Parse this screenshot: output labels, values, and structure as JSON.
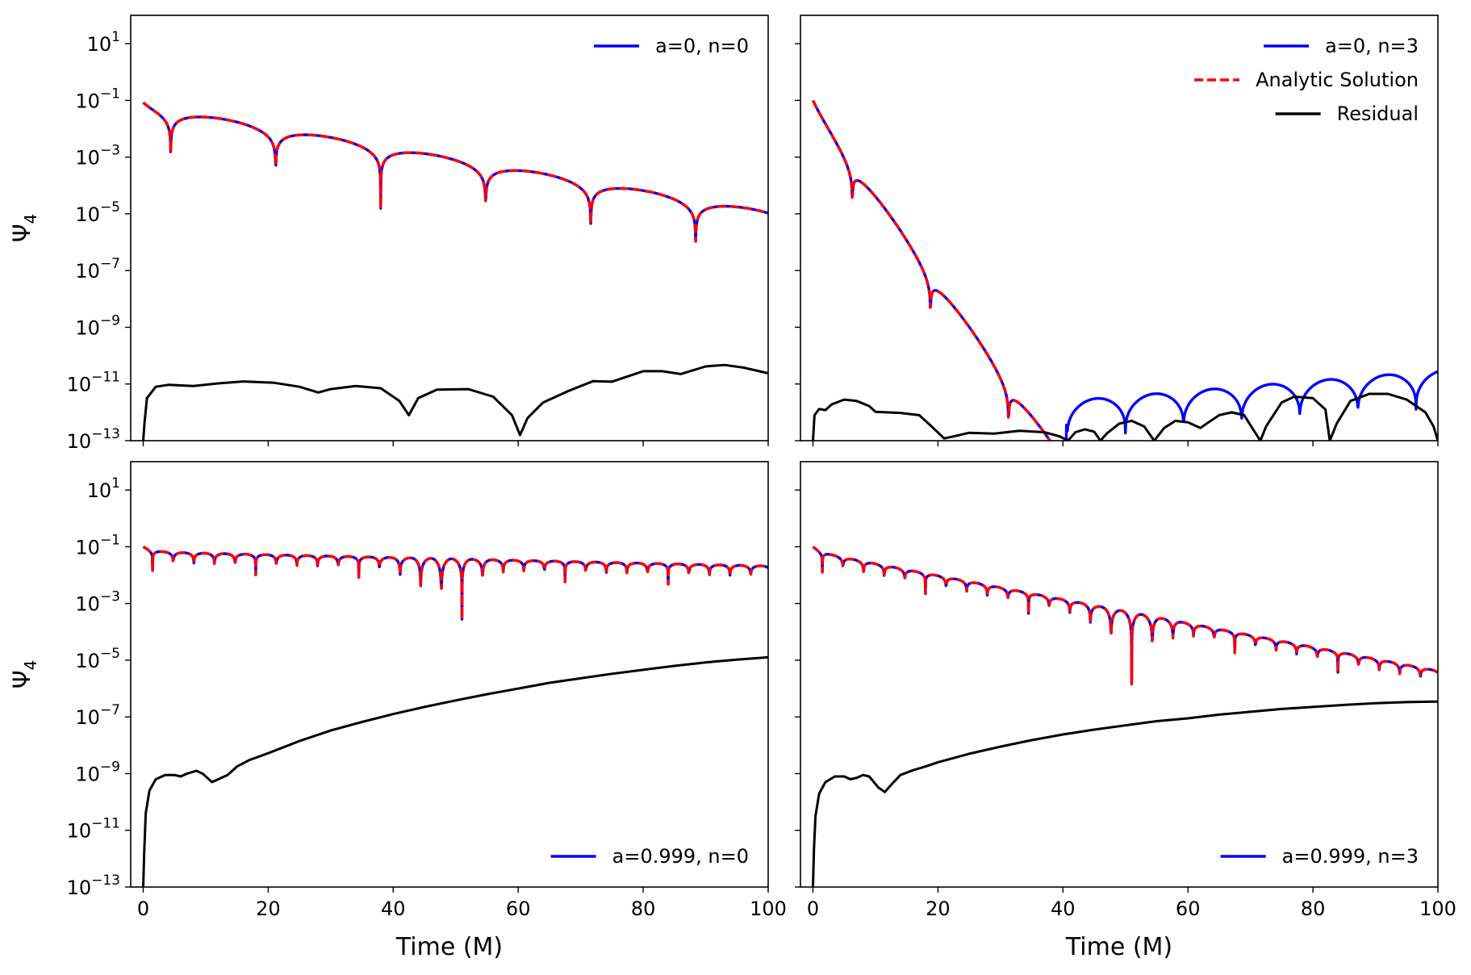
{
  "chart_data": [
    {
      "type": "line",
      "panel": "top-left",
      "yscale": "log",
      "ylabel": "Ψ",
      "ylabel_sub": "4",
      "xlabel": "",
      "xlim": [
        -2,
        100
      ],
      "ylim_exp": [
        -13,
        2
      ],
      "yticks": [
        {
          "base": "10",
          "exp": "1"
        },
        {
          "base": "10",
          "exp": "−1"
        },
        {
          "base": "10",
          "exp": "−3"
        },
        {
          "base": "10",
          "exp": "−5"
        },
        {
          "base": "10",
          "exp": "−7"
        },
        {
          "base": "10",
          "exp": "−9"
        },
        {
          "base": "10",
          "exp": "−11"
        },
        {
          "base": "10",
          "exp": "−13"
        }
      ],
      "xticks": [],
      "legend_loc": "upper right",
      "legend": [
        {
          "label": "a=0, n=0",
          "color": "#0000ff",
          "style": "solid"
        }
      ],
      "series": [
        {
          "name": "Numerical",
          "color": "#0000ff",
          "style": "solid",
          "generator": {
            "kind": "qnm",
            "slope": -0.0375,
            "period": 16.8,
            "phase": 4.4,
            "sharp": 9
          }
        },
        {
          "name": "Analytic Solution",
          "color": "#ff0000",
          "style": "dashed",
          "generator": {
            "kind": "qnm",
            "slope": -0.0375,
            "period": 16.8,
            "phase": 4.4,
            "sharp": 9
          }
        },
        {
          "name": "Residual",
          "color": "#000000",
          "style": "solid",
          "points": [
            [
              0,
              -13
            ],
            [
              0.2,
              -12.4
            ],
            [
              0.6,
              -11.5
            ],
            [
              2,
              -11.1
            ],
            [
              4,
              -11.03
            ],
            [
              8,
              -11.07
            ],
            [
              12,
              -10.98
            ],
            [
              16,
              -10.91
            ],
            [
              21,
              -10.96
            ],
            [
              25,
              -11.1
            ],
            [
              28,
              -11.3
            ],
            [
              30,
              -11.18
            ],
            [
              34,
              -11.07
            ],
            [
              38,
              -11.15
            ],
            [
              41,
              -11.6
            ],
            [
              42.5,
              -12.1
            ],
            [
              44,
              -11.5
            ],
            [
              47,
              -11.2
            ],
            [
              52,
              -11.18
            ],
            [
              56,
              -11.45
            ],
            [
              59,
              -12.1
            ],
            [
              60.3,
              -12.8
            ],
            [
              61.5,
              -12.2
            ],
            [
              64,
              -11.65
            ],
            [
              68,
              -11.25
            ],
            [
              72,
              -10.9
            ],
            [
              75,
              -10.92
            ],
            [
              80,
              -10.55
            ],
            [
              83,
              -10.55
            ],
            [
              86,
              -10.65
            ],
            [
              90,
              -10.38
            ],
            [
              93,
              -10.33
            ],
            [
              96,
              -10.42
            ],
            [
              100,
              -10.62
            ]
          ]
        }
      ]
    },
    {
      "type": "line",
      "panel": "top-right",
      "yscale": "log",
      "ylabel": "",
      "ylabel_sub": "",
      "xlabel": "",
      "xlim": [
        -2,
        100
      ],
      "ylim_exp": [
        -13,
        2
      ],
      "yticks": [],
      "xticks": [],
      "legend_loc": "upper right",
      "legend": [
        {
          "label": "a=0, n=3",
          "color": "#0000ff",
          "style": "solid"
        },
        {
          "label": "Analytic Solution",
          "color": "#ff0000",
          "style": "dashed"
        },
        {
          "label": "Residual",
          "color": "#000000",
          "style": "solid"
        }
      ],
      "series": [
        {
          "name": "Numerical",
          "color": "#0000ff",
          "style": "solid",
          "generator": {
            "kind": "qnm",
            "slope": -0.31,
            "period": 12.5,
            "phase": 6.3,
            "sharp": 9,
            "floor": -12,
            "floor_x": 40.5,
            "floor_period": 9.3,
            "floor_phase": 3.5,
            "floor_mode": "blue"
          }
        },
        {
          "name": "Analytic Solution",
          "color": "#ff0000",
          "style": "dashed",
          "generator": {
            "kind": "qnm",
            "slope": -0.31,
            "period": 12.5,
            "phase": 6.3,
            "sharp": 9,
            "cut_x": 40.5
          }
        },
        {
          "name": "Residual",
          "color": "#000000",
          "style": "solid",
          "points": [
            [
              0,
              -13
            ],
            [
              0.25,
              -12.1
            ],
            [
              1,
              -11.88
            ],
            [
              2,
              -11.92
            ],
            [
              3,
              -11.72
            ],
            [
              5,
              -11.55
            ],
            [
              7,
              -11.6
            ],
            [
              9,
              -11.78
            ],
            [
              10,
              -11.98
            ],
            [
              14,
              -12.02
            ],
            [
              17,
              -12.1
            ],
            [
              19,
              -12.5
            ],
            [
              21,
              -12.92
            ],
            [
              22.5,
              -12.85
            ],
            [
              25,
              -12.72
            ],
            [
              29,
              -12.75
            ],
            [
              33,
              -12.65
            ],
            [
              37,
              -12.7
            ],
            [
              39.5,
              -12.85
            ],
            [
              40.8,
              -13
            ],
            [
              42,
              -12.7
            ],
            [
              43.5,
              -12.6
            ],
            [
              45,
              -12.68
            ],
            [
              46,
              -13
            ],
            [
              47,
              -12.75
            ],
            [
              49,
              -12.4
            ],
            [
              51,
              -12.3
            ],
            [
              53,
              -12.5
            ],
            [
              54.6,
              -13
            ],
            [
              56.2,
              -12.55
            ],
            [
              58,
              -12.3
            ],
            [
              60,
              -12.35
            ],
            [
              62,
              -12.55
            ],
            [
              63.3,
              -12.35
            ],
            [
              65,
              -12.1
            ],
            [
              67,
              -12
            ],
            [
              69,
              -12.1
            ],
            [
              71,
              -12.8
            ],
            [
              71.6,
              -13
            ],
            [
              72.5,
              -12.5
            ],
            [
              75,
              -11.65
            ],
            [
              77,
              -11.45
            ],
            [
              80,
              -11.5
            ],
            [
              82,
              -11.9
            ],
            [
              82.7,
              -13
            ],
            [
              83.8,
              -12.4
            ],
            [
              86,
              -11.6
            ],
            [
              89,
              -11.35
            ],
            [
              92,
              -11.35
            ],
            [
              95,
              -11.55
            ],
            [
              98,
              -12
            ],
            [
              99.3,
              -12.5
            ],
            [
              100,
              -13
            ]
          ]
        }
      ]
    },
    {
      "type": "line",
      "panel": "bottom-left",
      "yscale": "log",
      "ylabel": "Ψ",
      "ylabel_sub": "4",
      "xlabel": "Time (M)",
      "xlim": [
        -2,
        100
      ],
      "ylim_exp": [
        -13,
        2
      ],
      "yticks": [
        {
          "base": "10",
          "exp": "1"
        },
        {
          "base": "10",
          "exp": "−1"
        },
        {
          "base": "10",
          "exp": "−3"
        },
        {
          "base": "10",
          "exp": "−5"
        },
        {
          "base": "10",
          "exp": "−7"
        },
        {
          "base": "10",
          "exp": "−9"
        },
        {
          "base": "10",
          "exp": "−11"
        },
        {
          "base": "10",
          "exp": "−13"
        }
      ],
      "xticks": [
        "0",
        "20",
        "40",
        "60",
        "80",
        "100"
      ],
      "legend_loc": "lower right",
      "legend": [
        {
          "label": "a=0.999, n=0",
          "color": "#0000ff",
          "style": "solid"
        }
      ],
      "series": [
        {
          "name": "Numerical",
          "color": "#0000ff",
          "style": "solid",
          "generator": {
            "kind": "qnm",
            "slope": -0.005,
            "period": 3.3,
            "phase": 1.5,
            "sharp": 5,
            "beat": 48
          }
        },
        {
          "name": "Analytic Solution",
          "color": "#ff0000",
          "style": "dashed",
          "generator": {
            "kind": "qnm",
            "slope": -0.005,
            "period": 3.3,
            "phase": 1.5,
            "sharp": 5,
            "beat": 48
          }
        },
        {
          "name": "Residual",
          "color": "#000000",
          "style": "solid",
          "points": [
            [
              0,
              -13
            ],
            [
              0.15,
              -11.8
            ],
            [
              0.4,
              -10.4
            ],
            [
              1,
              -9.6
            ],
            [
              2,
              -9.2
            ],
            [
              3.5,
              -9.05
            ],
            [
              5,
              -9.05
            ],
            [
              6,
              -9.1
            ],
            [
              7,
              -9.0
            ],
            [
              8.5,
              -8.9
            ],
            [
              9.5,
              -9.0
            ],
            [
              11,
              -9.3
            ],
            [
              12,
              -9.2
            ],
            [
              13.5,
              -9.05
            ],
            [
              15,
              -8.75
            ],
            [
              17,
              -8.52
            ],
            [
              20,
              -8.28
            ],
            [
              25,
              -7.85
            ],
            [
              30,
              -7.48
            ],
            [
              35,
              -7.18
            ],
            [
              40,
              -6.9
            ],
            [
              45,
              -6.65
            ],
            [
              50,
              -6.42
            ],
            [
              55,
              -6.2
            ],
            [
              60,
              -6.0
            ],
            [
              65,
              -5.8
            ],
            [
              70,
              -5.64
            ],
            [
              75,
              -5.48
            ],
            [
              80,
              -5.34
            ],
            [
              85,
              -5.2
            ],
            [
              90,
              -5.08
            ],
            [
              95,
              -4.98
            ],
            [
              100,
              -4.9
            ]
          ]
        }
      ]
    },
    {
      "type": "line",
      "panel": "bottom-right",
      "yscale": "log",
      "ylabel": "",
      "ylabel_sub": "",
      "xlabel": "Time (M)",
      "xlim": [
        -2,
        100
      ],
      "ylim_exp": [
        -13,
        2
      ],
      "yticks": [],
      "xticks": [
        "0",
        "20",
        "40",
        "60",
        "80",
        "100"
      ],
      "legend_loc": "lower right",
      "legend": [
        {
          "label": "a=0.999, n=3",
          "color": "#0000ff",
          "style": "solid"
        }
      ],
      "series": [
        {
          "name": "Numerical",
          "color": "#0000ff",
          "style": "solid",
          "generator": {
            "kind": "qnm",
            "slope": -0.042,
            "period": 3.3,
            "phase": 1.5,
            "sharp": 5,
            "beat": 51
          }
        },
        {
          "name": "Analytic Solution",
          "color": "#ff0000",
          "style": "dashed",
          "generator": {
            "kind": "qnm",
            "slope": -0.042,
            "period": 3.3,
            "phase": 1.5,
            "sharp": 5,
            "beat": 51
          }
        },
        {
          "name": "Residual",
          "color": "#000000",
          "style": "solid",
          "points": [
            [
              0,
              -13
            ],
            [
              0.15,
              -11.7
            ],
            [
              0.4,
              -10.5
            ],
            [
              1,
              -9.7
            ],
            [
              2,
              -9.3
            ],
            [
              3.5,
              -9.1
            ],
            [
              5,
              -9.1
            ],
            [
              6,
              -9.2
            ],
            [
              7,
              -9.15
            ],
            [
              8,
              -9.05
            ],
            [
              9,
              -9.1
            ],
            [
              10.5,
              -9.5
            ],
            [
              11.5,
              -9.65
            ],
            [
              12.5,
              -9.4
            ],
            [
              14,
              -9.05
            ],
            [
              16,
              -8.88
            ],
            [
              18,
              -8.75
            ],
            [
              20,
              -8.6
            ],
            [
              25,
              -8.3
            ],
            [
              30,
              -8.05
            ],
            [
              35,
              -7.82
            ],
            [
              40,
              -7.62
            ],
            [
              45,
              -7.45
            ],
            [
              50,
              -7.3
            ],
            [
              55,
              -7.15
            ],
            [
              60,
              -7.05
            ],
            [
              65,
              -6.92
            ],
            [
              70,
              -6.82
            ],
            [
              75,
              -6.72
            ],
            [
              80,
              -6.65
            ],
            [
              85,
              -6.58
            ],
            [
              90,
              -6.52
            ],
            [
              95,
              -6.48
            ],
            [
              100,
              -6.46
            ]
          ]
        }
      ]
    }
  ]
}
